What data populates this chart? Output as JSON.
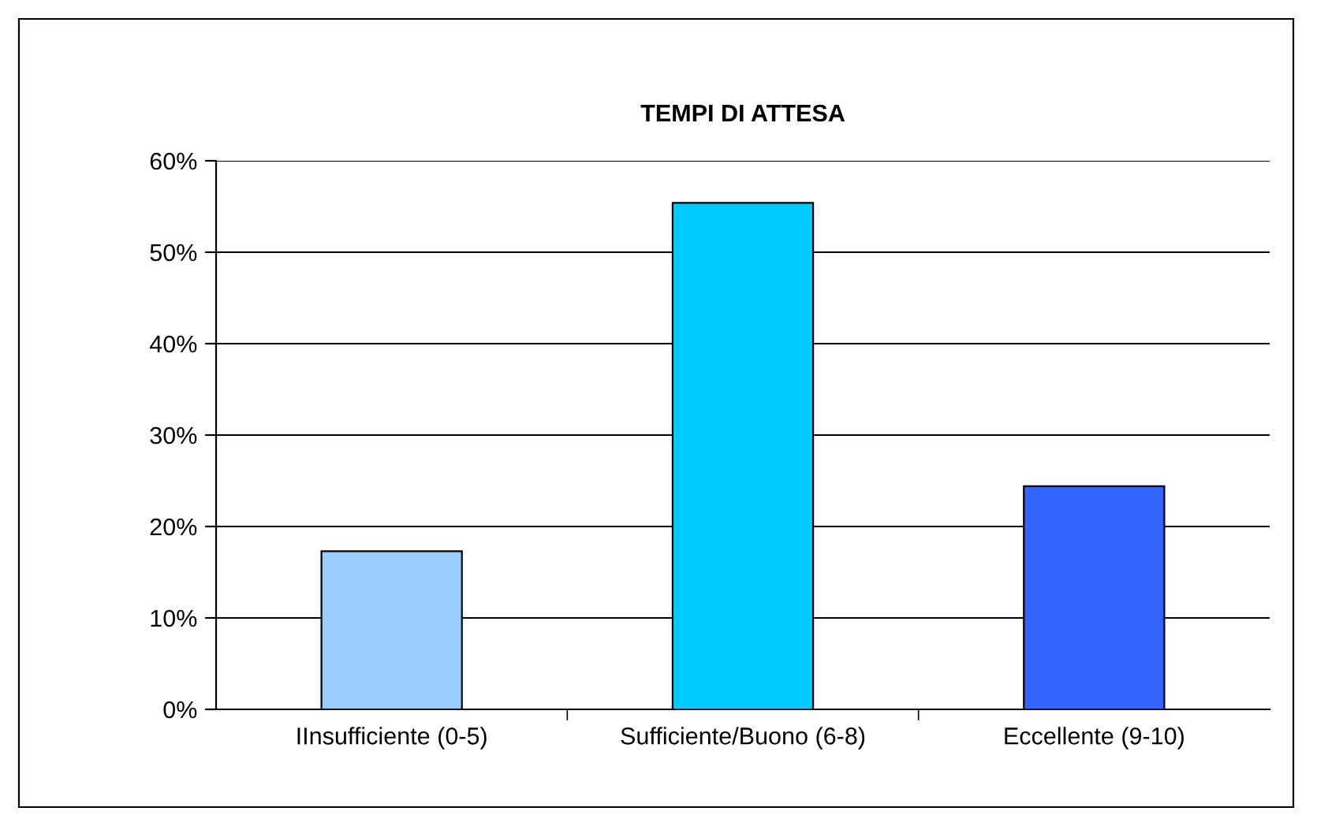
{
  "chart_data": {
    "type": "bar",
    "title": "TEMPI DI ATTESA",
    "categories": [
      "IInsufficiente (0-5)",
      "Sufficiente/Buono (6-8)",
      "Eccellente (9-10)"
    ],
    "values": [
      17.3,
      55.4,
      24.4
    ],
    "colors": [
      "#99ccff",
      "#00ccff",
      "#3366ff"
    ],
    "ylim": [
      0,
      60
    ],
    "yticks": [
      {
        "value": 0,
        "label": "0%"
      },
      {
        "value": 10,
        "label": "10%"
      },
      {
        "value": 20,
        "label": "20%"
      },
      {
        "value": 30,
        "label": "30%"
      },
      {
        "value": 40,
        "label": "40%"
      },
      {
        "value": 50,
        "label": "50%"
      },
      {
        "value": 60,
        "label": "60%"
      }
    ],
    "grid": "y",
    "legend": false
  }
}
